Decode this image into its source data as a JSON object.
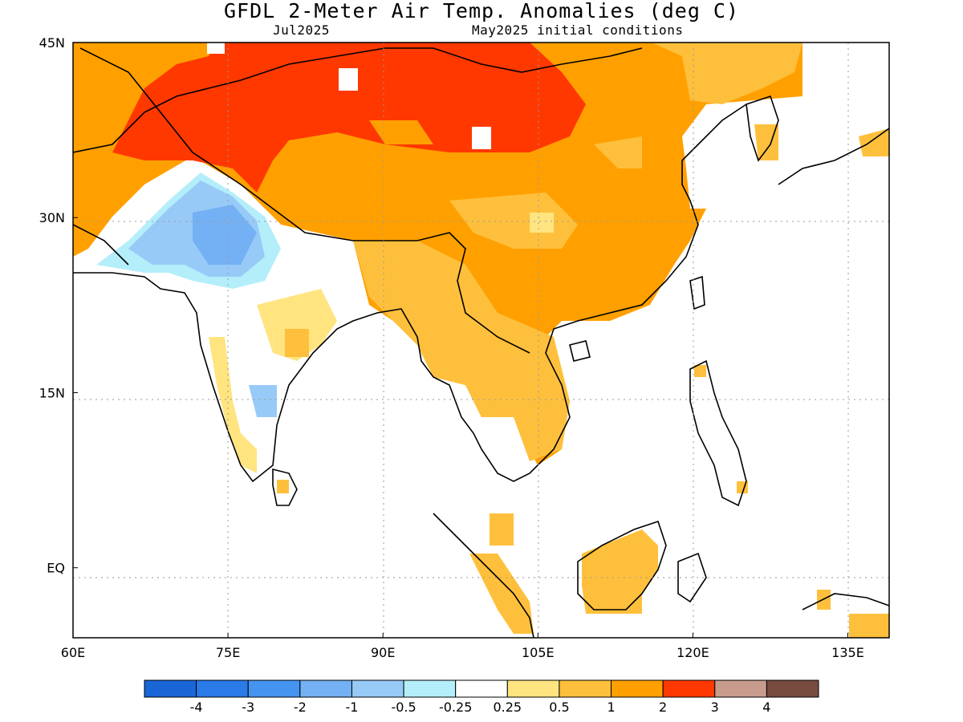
{
  "header": {
    "title": "GFDL 2-Meter Air Temp. Anomalies (deg C)",
    "valid_month": "Jul2025",
    "initial_conditions": "May2025 initial conditions"
  },
  "map": {
    "region": {
      "lon_min": 60,
      "lon_max": 139,
      "lat_min": -6,
      "lat_max": 45
    },
    "lon_ticks": [
      {
        "value": 60,
        "label": "60E"
      },
      {
        "value": 75,
        "label": "75E"
      },
      {
        "value": 90,
        "label": "90E"
      },
      {
        "value": 105,
        "label": "105E"
      },
      {
        "value": 120,
        "label": "120E"
      },
      {
        "value": 135,
        "label": "135E"
      }
    ],
    "lat_ticks": [
      {
        "value": 45,
        "label": "45N"
      },
      {
        "value": 30,
        "label": "30N"
      },
      {
        "value": 15,
        "label": "15N"
      },
      {
        "value": 0,
        "label": "EQ"
      }
    ],
    "gridlines": "dotted"
  },
  "colorbar": {
    "colors": [
      "#1a66d6",
      "#2a7ae8",
      "#4494f0",
      "#74b0f4",
      "#98caf8",
      "#b4eefa",
      "#ffffff",
      "#ffe480",
      "#fec03c",
      "#ffa000",
      "#ff3800",
      "#c89c8c",
      "#784c40"
    ],
    "labels": [
      "-4",
      "-3",
      "-2",
      "-1",
      "-0.5",
      "-0.25",
      "0.25",
      "0.5",
      "1",
      "2",
      "3",
      "4"
    ]
  }
}
